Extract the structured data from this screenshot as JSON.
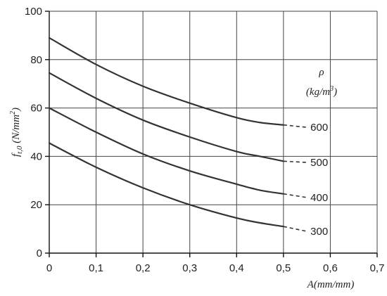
{
  "chart_data": {
    "type": "line",
    "title": "",
    "xlabel": "A(mm/mm)",
    "ylabel": "f_t,0 (N/mm²)",
    "ylabel_parts": {
      "main": "f",
      "sub": "t,0",
      "unit_open": " (N/mm",
      "sup": "2",
      "unit_close": ")"
    },
    "xlabel_parts": {
      "main": "A(mm/mm)"
    },
    "xlim": [
      0,
      0.7
    ],
    "ylim": [
      0,
      100
    ],
    "x_ticks": [
      {
        "v": 0,
        "label": "0"
      },
      {
        "v": 0.1,
        "label": "0,1"
      },
      {
        "v": 0.2,
        "label": "0,2"
      },
      {
        "v": 0.3,
        "label": "0,3"
      },
      {
        "v": 0.4,
        "label": "0,4"
      },
      {
        "v": 0.5,
        "label": "0,5"
      },
      {
        "v": 0.6,
        "label": "0,6"
      },
      {
        "v": 0.7,
        "label": "0,7"
      }
    ],
    "y_ticks": [
      {
        "v": 0,
        "label": "0"
      },
      {
        "v": 20,
        "label": "20"
      },
      {
        "v": 40,
        "label": "40"
      },
      {
        "v": 60,
        "label": "60"
      },
      {
        "v": 80,
        "label": "80"
      },
      {
        "v": 100,
        "label": "100"
      }
    ],
    "grid": true,
    "legend": {
      "title": "ρ",
      "unit_open": "(kg/m",
      "unit_sup": "3",
      "unit_close": ")",
      "placement": "right"
    },
    "series": [
      {
        "name": "600",
        "x": [
          0,
          0.1,
          0.2,
          0.3,
          0.4,
          0.45,
          0.5
        ],
        "y": [
          89,
          78,
          69,
          62,
          56,
          54,
          53
        ],
        "dash_to": [
          0.55,
          52
        ]
      },
      {
        "name": "500",
        "x": [
          0,
          0.1,
          0.2,
          0.3,
          0.4,
          0.45,
          0.5
        ],
        "y": [
          74.5,
          64,
          55,
          48,
          42,
          40,
          38
        ],
        "dash_to": [
          0.55,
          37.5
        ]
      },
      {
        "name": "400",
        "x": [
          0,
          0.1,
          0.2,
          0.3,
          0.4,
          0.45,
          0.5
        ],
        "y": [
          60,
          50,
          41,
          34,
          28.5,
          26,
          24.5
        ],
        "dash_to": [
          0.55,
          23
        ]
      },
      {
        "name": "300",
        "x": [
          0,
          0.1,
          0.2,
          0.3,
          0.4,
          0.45,
          0.5
        ],
        "y": [
          45.5,
          35.5,
          27,
          20,
          14.5,
          12.5,
          11
        ],
        "dash_to": [
          0.55,
          9
        ]
      }
    ]
  }
}
